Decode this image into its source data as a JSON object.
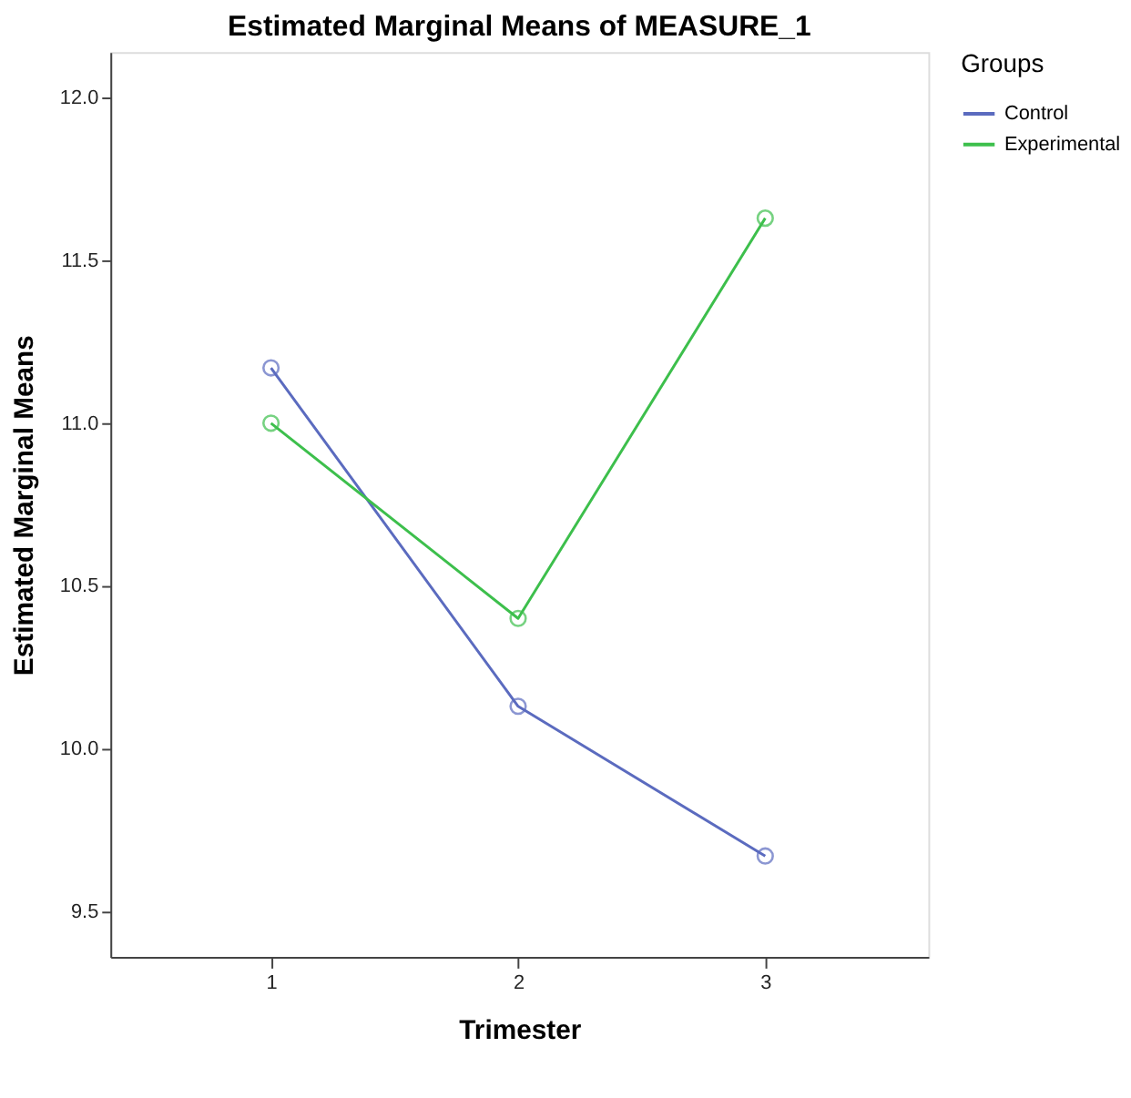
{
  "chart_data": {
    "type": "line",
    "title": "Estimated Marginal Means of MEASURE_1",
    "xlabel": "Trimester",
    "ylabel": "Estimated Marginal Means",
    "legend_title": "Groups",
    "x": [
      1,
      2,
      3
    ],
    "series": [
      {
        "name": "Control",
        "color": "#5b6bbf",
        "values": [
          11.17,
          10.13,
          9.67
        ]
      },
      {
        "name": "Experimental",
        "color": "#3dbf4c",
        "values": [
          11.0,
          10.4,
          11.63
        ]
      }
    ],
    "xlim": [
      0.35,
      3.66
    ],
    "xticks": [
      1,
      2,
      3
    ],
    "ylim": [
      9.36,
      12.14
    ],
    "yticks": [
      {
        "value": 9.5,
        "label": "9.5"
      },
      {
        "value": 10.0,
        "label": "10.0"
      },
      {
        "value": 10.5,
        "label": "10.5"
      },
      {
        "value": 11.0,
        "label": "11.0"
      },
      {
        "value": 11.5,
        "label": "11.5"
      },
      {
        "value": 12.0,
        "label": "12.0"
      }
    ],
    "grid": false,
    "legend": "top right",
    "marker": "circle",
    "line_style": "solid"
  }
}
